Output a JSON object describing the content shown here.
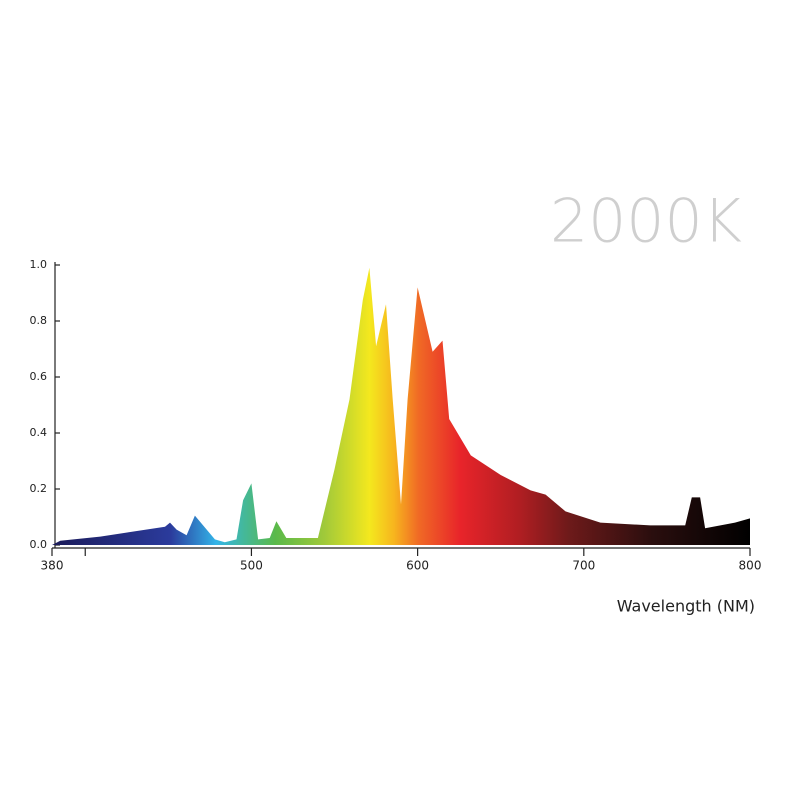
{
  "chart_data": {
    "type": "area",
    "title": "2000K",
    "xlabel": "Wavelength (NM)",
    "x": [
      380,
      385,
      409,
      448,
      451,
      455,
      461,
      466,
      478,
      484,
      491,
      495,
      500,
      504,
      511,
      515,
      521,
      540,
      550,
      559,
      567,
      571,
      575,
      581,
      585,
      590,
      594,
      600,
      609,
      615,
      619,
      632,
      650,
      668,
      677,
      689,
      710,
      740,
      761,
      765,
      770,
      773,
      791,
      800
    ],
    "values": [
      0.0,
      0.015,
      0.03,
      0.065,
      0.08,
      0.055,
      0.035,
      0.105,
      0.02,
      0.01,
      0.02,
      0.16,
      0.22,
      0.02,
      0.025,
      0.085,
      0.025,
      0.025,
      0.27,
      0.52,
      0.875,
      0.99,
      0.71,
      0.86,
      0.52,
      0.145,
      0.52,
      0.92,
      0.69,
      0.73,
      0.45,
      0.32,
      0.25,
      0.195,
      0.18,
      0.12,
      0.08,
      0.07,
      0.07,
      0.17,
      0.17,
      0.06,
      0.08,
      0.095
    ],
    "xlim": [
      380,
      800
    ],
    "xticks": [
      380,
      {
        "value": 400,
        "label": null
      },
      500,
      600,
      700,
      800
    ],
    "ylim": [
      0,
      1
    ],
    "yticks": [
      {
        "value": 0,
        "label": "0.0"
      },
      0.2,
      0.4,
      0.6,
      0.8,
      {
        "value": 1,
        "label": "1.0"
      }
    ]
  }
}
